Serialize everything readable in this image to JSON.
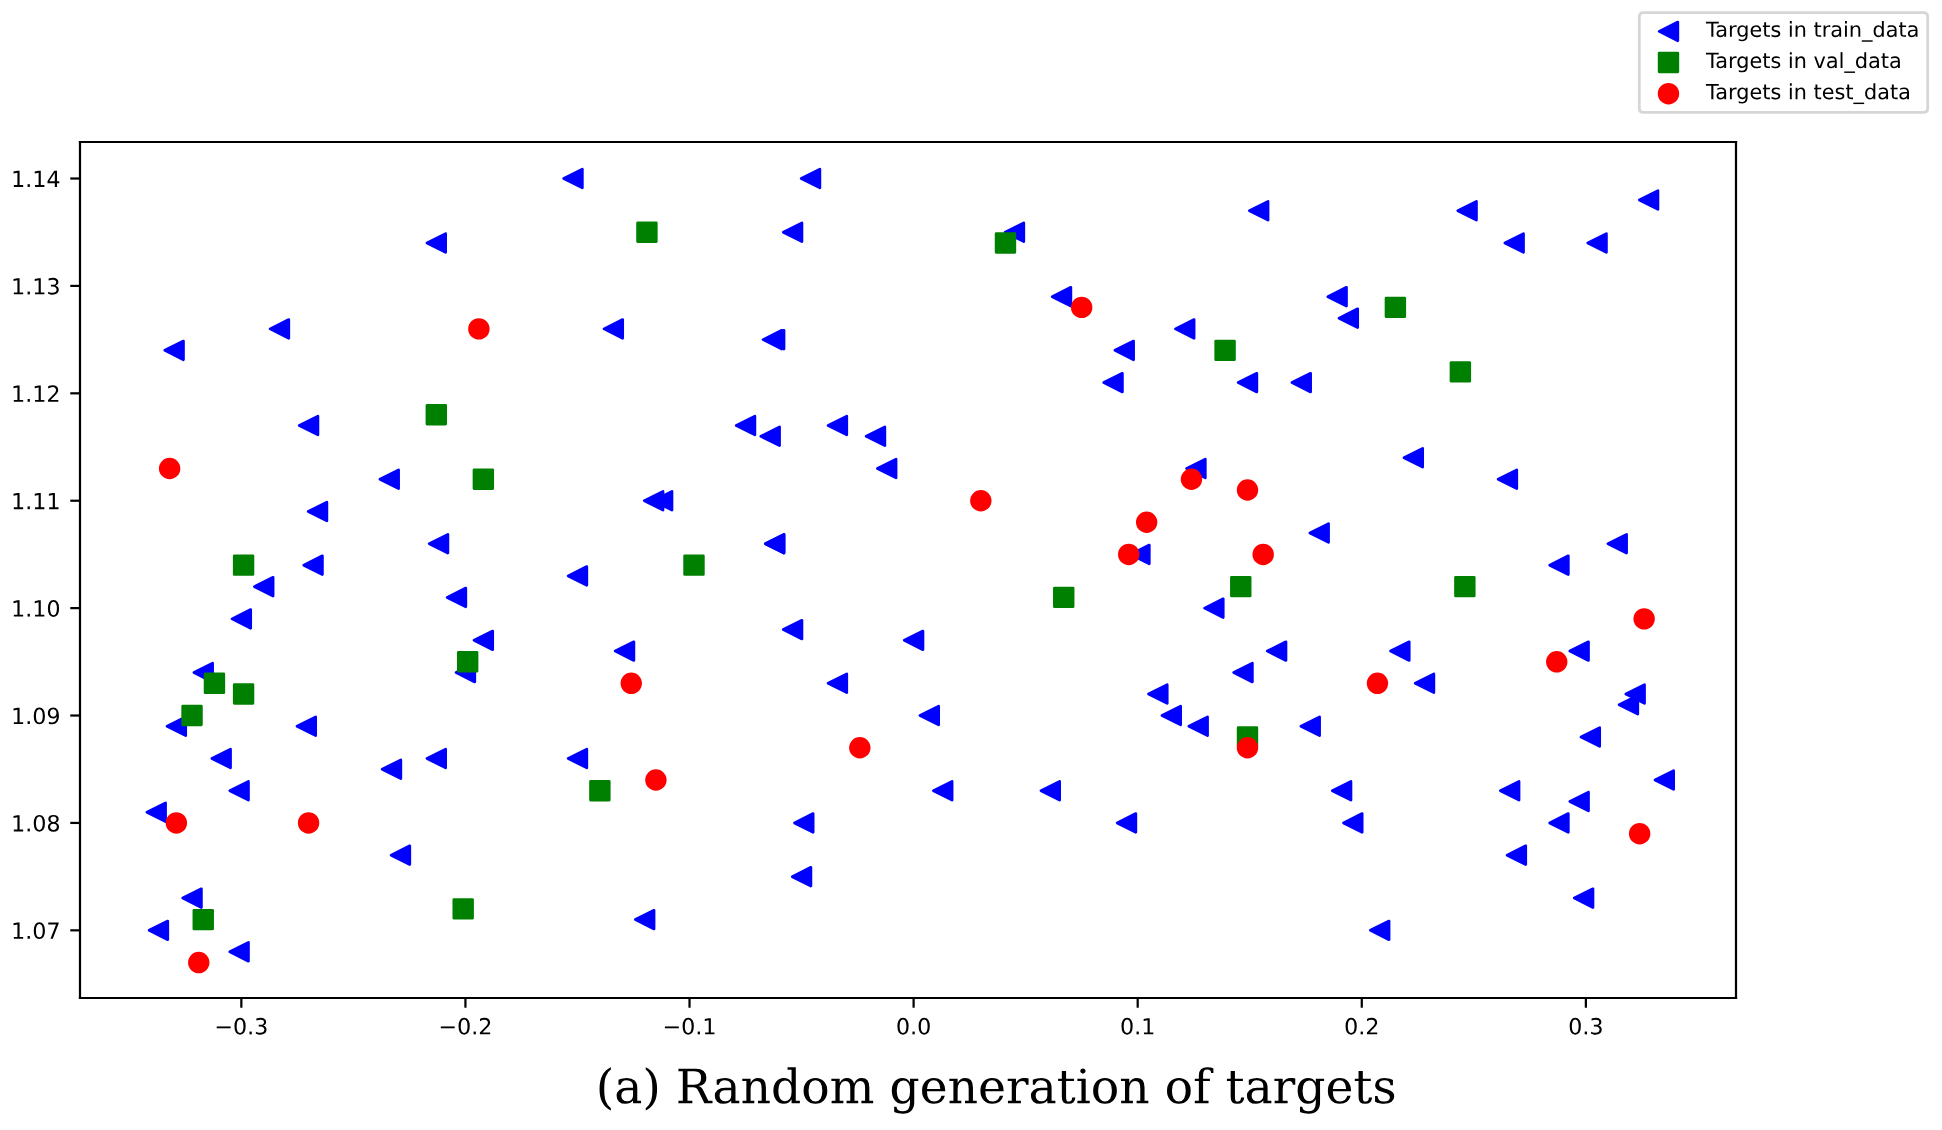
{
  "chart_data": {
    "type": "scatter",
    "annotations": [
      "(a) Random generation of targets"
    ],
    "xlim": [
      -0.372,
      0.367
    ],
    "ylim": [
      1.0637,
      1.1434
    ],
    "xticks": [
      {
        "value": -0.3,
        "label": "−0.3"
      },
      {
        "value": -0.2,
        "label": "−0.2"
      },
      {
        "value": -0.1,
        "label": "−0.1"
      },
      {
        "value": 0.0,
        "label": "0.0"
      },
      {
        "value": 0.1,
        "label": "0.1"
      },
      {
        "value": 0.2,
        "label": "0.2"
      },
      {
        "value": 0.3,
        "label": "0.3"
      }
    ],
    "yticks": [
      1.07,
      1.08,
      1.09,
      {
        "value": 1.1,
        "label": "1.10"
      },
      1.11,
      1.12,
      1.13,
      1.14
    ],
    "grid": false,
    "legend": "top right",
    "series": [
      {
        "name": "Targets in train_data",
        "color": "#0000ff",
        "marker": "triangle",
        "x": [
          -0.338,
          -0.33,
          -0.329,
          -0.337,
          -0.322,
          -0.317,
          -0.309,
          -0.301,
          -0.3,
          -0.301,
          -0.29,
          -0.283,
          -0.27,
          -0.266,
          -0.268,
          -0.271,
          -0.233,
          -0.229,
          -0.234,
          -0.213,
          -0.212,
          -0.213,
          -0.204,
          -0.2,
          -0.192,
          -0.152,
          -0.15,
          -0.15,
          -0.134,
          -0.129,
          -0.12,
          -0.116,
          -0.112,
          -0.075,
          -0.064,
          -0.062,
          -0.063,
          -0.062,
          -0.062,
          -0.054,
          -0.054,
          -0.046,
          -0.05,
          -0.049,
          -0.034,
          -0.034,
          -0.017,
          -0.012,
          0.0,
          0.007,
          0.013,
          0.045,
          0.061,
          0.066,
          0.089,
          0.094,
          0.095,
          0.101,
          0.109,
          0.115,
          0.121,
          0.126,
          0.127,
          0.134,
          0.147,
          0.149,
          0.154,
          0.162,
          0.173,
          0.177,
          0.181,
          0.189,
          0.194,
          0.191,
          0.196,
          0.208,
          0.217,
          0.223,
          0.228,
          0.247,
          0.266,
          0.269,
          0.268,
          0.265,
          0.288,
          0.288,
          0.297,
          0.299,
          0.297,
          0.302,
          0.305,
          0.314,
          0.319,
          0.322,
          0.335,
          0.328
        ],
        "values": [
          1.081,
          1.124,
          1.089,
          1.07,
          1.073,
          1.094,
          1.086,
          1.083,
          1.099,
          1.068,
          1.102,
          1.126,
          1.117,
          1.109,
          1.104,
          1.089,
          1.085,
          1.077,
          1.112,
          1.134,
          1.106,
          1.086,
          1.101,
          1.094,
          1.097,
          1.14,
          1.103,
          1.086,
          1.126,
          1.096,
          1.071,
          1.11,
          1.11,
          1.117,
          1.116,
          1.125,
          1.125,
          1.106,
          1.106,
          1.098,
          1.135,
          1.14,
          1.075,
          1.08,
          1.093,
          1.117,
          1.116,
          1.113,
          1.097,
          1.09,
          1.083,
          1.135,
          1.083,
          1.129,
          1.121,
          1.124,
          1.08,
          1.105,
          1.092,
          1.09,
          1.126,
          1.113,
          1.089,
          1.1,
          1.094,
          1.121,
          1.137,
          1.096,
          1.121,
          1.089,
          1.107,
          1.129,
          1.127,
          1.083,
          1.08,
          1.07,
          1.096,
          1.114,
          1.093,
          1.137,
          1.083,
          1.077,
          1.134,
          1.112,
          1.104,
          1.08,
          1.096,
          1.073,
          1.082,
          1.088,
          1.134,
          1.106,
          1.091,
          1.092,
          1.084,
          1.138
        ]
      },
      {
        "name": "Targets in val_data",
        "color": "#008000",
        "marker": "square",
        "x": [
          -0.119,
          -0.213,
          -0.192,
          -0.299,
          -0.312,
          -0.322,
          -0.299,
          -0.199,
          -0.098,
          -0.14,
          -0.201,
          -0.317,
          0.041,
          0.067,
          0.139,
          0.215,
          0.244,
          0.146,
          0.246,
          0.149
        ],
        "values": [
          1.135,
          1.118,
          1.112,
          1.104,
          1.093,
          1.09,
          1.092,
          1.095,
          1.104,
          1.083,
          1.072,
          1.071,
          1.134,
          1.101,
          1.124,
          1.128,
          1.122,
          1.102,
          1.102,
          1.088
        ]
      },
      {
        "name": "Targets in test_data",
        "color": "#ff0000",
        "marker": "circle",
        "x": [
          -0.332,
          -0.329,
          -0.319,
          -0.27,
          -0.194,
          -0.126,
          -0.115,
          -0.024,
          0.03,
          0.075,
          0.096,
          0.104,
          0.124,
          0.149,
          0.149,
          0.156,
          0.207,
          0.287,
          0.326,
          0.324
        ],
        "values": [
          1.113,
          1.08,
          1.067,
          1.08,
          1.126,
          1.093,
          1.084,
          1.087,
          1.11,
          1.128,
          1.105,
          1.108,
          1.112,
          1.111,
          1.087,
          1.105,
          1.093,
          1.095,
          1.099,
          1.079
        ]
      }
    ]
  }
}
